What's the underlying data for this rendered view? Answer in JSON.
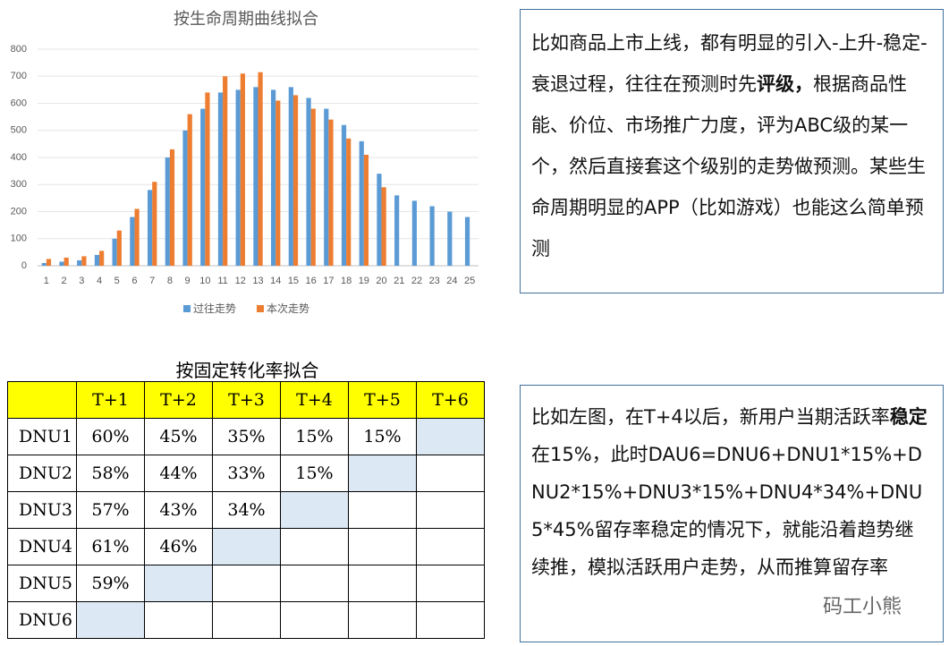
{
  "chart_data": {
    "type": "bar",
    "title": "按生命周期曲线拟合",
    "categories": [
      "1",
      "2",
      "3",
      "4",
      "5",
      "6",
      "7",
      "8",
      "9",
      "10",
      "11",
      "12",
      "13",
      "14",
      "15",
      "16",
      "17",
      "18",
      "19",
      "20",
      "21",
      "22",
      "23",
      "24",
      "25"
    ],
    "series": [
      {
        "name": "过往走势",
        "color": "#5b9bd5",
        "values": [
          10,
          15,
          20,
          40,
          100,
          180,
          280,
          400,
          500,
          580,
          640,
          650,
          660,
          650,
          660,
          620,
          580,
          520,
          460,
          340,
          260,
          240,
          220,
          200,
          180
        ]
      },
      {
        "name": "本次走势",
        "color": "#ed7d31",
        "values": [
          25,
          30,
          35,
          55,
          130,
          210,
          310,
          430,
          560,
          640,
          700,
          710,
          715,
          610,
          630,
          580,
          540,
          470,
          410,
          290,
          null,
          null,
          null,
          null,
          null
        ]
      }
    ],
    "ylim": [
      0,
      800
    ],
    "yticks": [
      0,
      100,
      200,
      300,
      400,
      500,
      600,
      700,
      800
    ],
    "grid": true,
    "legend": "bottom"
  },
  "note1": {
    "segments": [
      {
        "text": "比如商品上市上线，都有明显的引入-上升-稳定-衰退过程，往往在预测时先"
      },
      {
        "text": "评级，",
        "bold": true
      },
      {
        "text": "根据商品性能、价位、市场推广力度，评为ABC级的某一个，然后直接套这个级别的走势做预测。某些生命周期明显的APP（比如游戏）也能这么简单预测"
      }
    ]
  },
  "table": {
    "title": "按固定转化率拟合",
    "header": [
      "T+1",
      "T+2",
      "T+3",
      "T+4",
      "T+5",
      "T+6"
    ],
    "rows": [
      {
        "label": "DNU1",
        "cells": [
          "60%",
          "45%",
          "35%",
          "15%",
          "15%"
        ]
      },
      {
        "label": "DNU2",
        "cells": [
          "58%",
          "44%",
          "33%",
          "15%"
        ]
      },
      {
        "label": "DNU3",
        "cells": [
          "57%",
          "43%",
          "34%"
        ]
      },
      {
        "label": "DNU4",
        "cells": [
          "61%",
          "46%"
        ]
      },
      {
        "label": "DNU5",
        "cells": [
          "59%"
        ]
      },
      {
        "label": "DNU6",
        "cells": []
      }
    ]
  },
  "note2": {
    "segments": [
      {
        "text": "比如左图，在T+4以后，新用户当期活跃率"
      },
      {
        "text": "稳定",
        "bold": true
      },
      {
        "text": "在15%，此时DAU6=DNU6+DNU1*15%+DNU2*15%+DNU3*15%+DNU4*34%+DNU5*45%留存率稳定的情况下，就能沿着趋势继续推，模拟活跃用户走势，从而推算留存率"
      }
    ]
  },
  "watermark": "码工小熊"
}
